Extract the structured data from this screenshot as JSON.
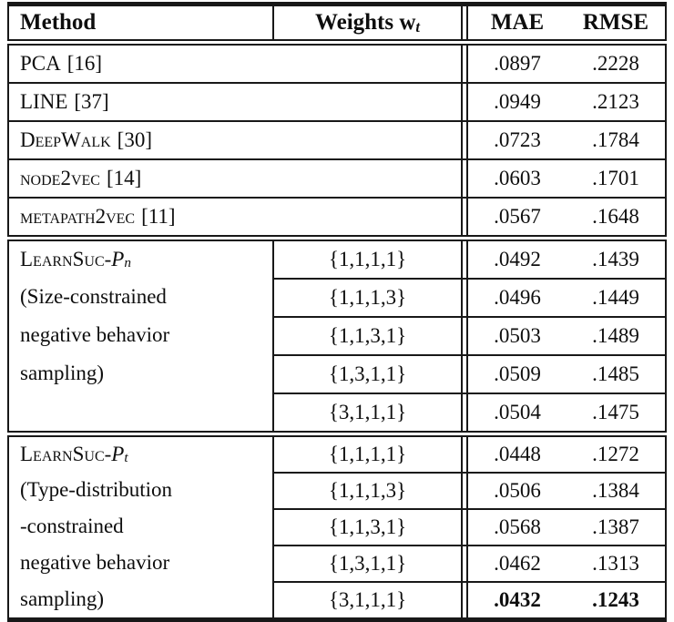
{
  "table": {
    "header": {
      "method": "Method",
      "weights_label": "Weights w",
      "weights_sub": "t",
      "mae": "MAE",
      "rmse": "RMSE"
    },
    "baselines": [
      {
        "method": "PCA",
        "ref": "[16]",
        "mae": ".0897",
        "rmse": ".2228"
      },
      {
        "method": "LINE",
        "ref": "[37]",
        "mae": ".0949",
        "rmse": ".2123"
      },
      {
        "method": "DeepWalk",
        "ref": "[30]",
        "mae": ".0723",
        "rmse": ".1784"
      },
      {
        "method": "node2vec",
        "ref": "[14]",
        "mae": ".0603",
        "rmse": ".1701"
      },
      {
        "method": "metapath2vec",
        "ref": "[11]",
        "mae": ".0567",
        "rmse": ".1648"
      }
    ],
    "groups": [
      {
        "name": "LearnSuc",
        "sep": "-",
        "variant": "P",
        "variant_sub": "n",
        "desc": [
          "(Size-constrained",
          "negative behavior",
          "sampling)",
          ""
        ],
        "rows": [
          {
            "weights": "{1,1,1,1}",
            "mae": ".0492",
            "rmse": ".1439",
            "bold": false
          },
          {
            "weights": "{1,1,1,3}",
            "mae": ".0496",
            "rmse": ".1449",
            "bold": false
          },
          {
            "weights": "{1,1,3,1}",
            "mae": ".0503",
            "rmse": ".1489",
            "bold": false
          },
          {
            "weights": "{1,3,1,1}",
            "mae": ".0509",
            "rmse": ".1485",
            "bold": false
          },
          {
            "weights": "{3,1,1,1}",
            "mae": ".0504",
            "rmse": ".1475",
            "bold": false
          }
        ]
      },
      {
        "name": "LearnSuc",
        "sep": "-",
        "variant": "P",
        "variant_sub": "t",
        "desc": [
          "(Type-distribution",
          "-constrained",
          "negative behavior",
          "sampling)"
        ],
        "rows": [
          {
            "weights": "{1,1,1,1}",
            "mae": ".0448",
            "rmse": ".1272",
            "bold": false
          },
          {
            "weights": "{1,1,1,3}",
            "mae": ".0506",
            "rmse": ".1384",
            "bold": false
          },
          {
            "weights": "{1,1,3,1}",
            "mae": ".0568",
            "rmse": ".1387",
            "bold": false
          },
          {
            "weights": "{1,3,1,1}",
            "mae": ".0462",
            "rmse": ".1313",
            "bold": false
          },
          {
            "weights": "{3,1,1,1}",
            "mae": ".0432",
            "rmse": ".1243",
            "bold": true
          }
        ]
      }
    ]
  }
}
